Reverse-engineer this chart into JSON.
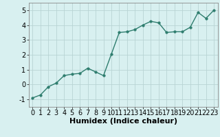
{
  "x": [
    0,
    1,
    2,
    3,
    4,
    5,
    6,
    7,
    8,
    9,
    10,
    11,
    12,
    13,
    14,
    15,
    16,
    17,
    18,
    19,
    20,
    21,
    22,
    23
  ],
  "y": [
    -0.9,
    -0.7,
    -0.15,
    0.1,
    0.6,
    0.7,
    0.75,
    1.1,
    0.85,
    0.6,
    2.05,
    3.5,
    3.55,
    3.7,
    4.0,
    4.25,
    4.15,
    3.5,
    3.55,
    3.55,
    3.85,
    4.85,
    4.45,
    5.0
  ],
  "line_color": "#2e7d6e",
  "marker_color": "#2e7d6e",
  "bg_color": "#d8f0f0",
  "grid_color": "#b8d4d4",
  "xlabel": "Humidex (Indice chaleur)",
  "xlabel_fontsize": 8,
  "xlim": [
    -0.5,
    23.5
  ],
  "ylim": [
    -1.5,
    5.5
  ],
  "yticks": [
    -1,
    0,
    1,
    2,
    3,
    4,
    5
  ],
  "xticks": [
    0,
    1,
    2,
    3,
    4,
    5,
    6,
    7,
    8,
    9,
    10,
    11,
    12,
    13,
    14,
    15,
    16,
    17,
    18,
    19,
    20,
    21,
    22,
    23
  ],
  "tick_fontsize": 7,
  "line_width": 1.0,
  "marker_size": 2.5
}
